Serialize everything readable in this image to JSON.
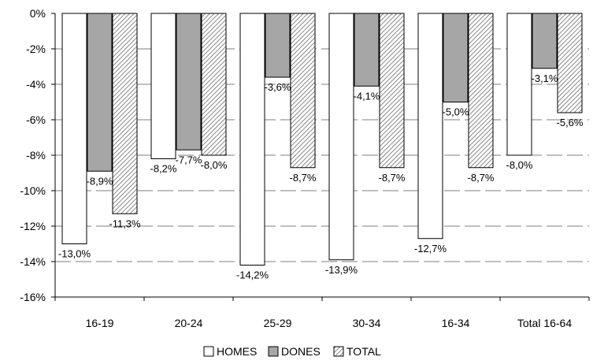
{
  "chart_data": {
    "type": "bar",
    "categories": [
      "16-19",
      "20-24",
      "25-29",
      "30-34",
      "16-34",
      "Total 16-64"
    ],
    "series": [
      {
        "name": "HOMES",
        "values": [
          -13.0,
          -8.2,
          -14.2,
          -13.9,
          -12.7,
          -8.0
        ],
        "labels": [
          "-13,0%",
          "-8,2%",
          "-14,2%",
          "-13,9%",
          "-12,7%",
          "-8,0%"
        ],
        "pattern": "empty"
      },
      {
        "name": "DONES",
        "values": [
          -8.9,
          -7.7,
          -3.6,
          -4.1,
          -5.0,
          -3.1
        ],
        "labels": [
          "-8,9%",
          "-7,7%",
          "-3,6%",
          "-4,1%",
          "-5,0%",
          "-3,1%"
        ],
        "pattern": "gray"
      },
      {
        "name": "TOTAL",
        "values": [
          -11.3,
          -8.0,
          -8.7,
          -8.7,
          -8.7,
          -5.6
        ],
        "labels": [
          "-11,3%",
          "-8,0%",
          "-8,7%",
          "-8,7%",
          "-8,7%",
          "-5,6%"
        ],
        "pattern": "hatched"
      }
    ],
    "y_ticks": [
      "0%",
      "-2%",
      "-4%",
      "-6%",
      "-8%",
      "-10%",
      "-12%",
      "-14%",
      "-16%"
    ],
    "ylim": [
      -16,
      0
    ],
    "grid": "dashed horizontal",
    "legend": "bottom-center",
    "colors": {
      "HOMES": "#ffffff",
      "DONES": "#a6a6a6",
      "TOTAL": "#b8b8b8",
      "outline": "#000000"
    }
  }
}
